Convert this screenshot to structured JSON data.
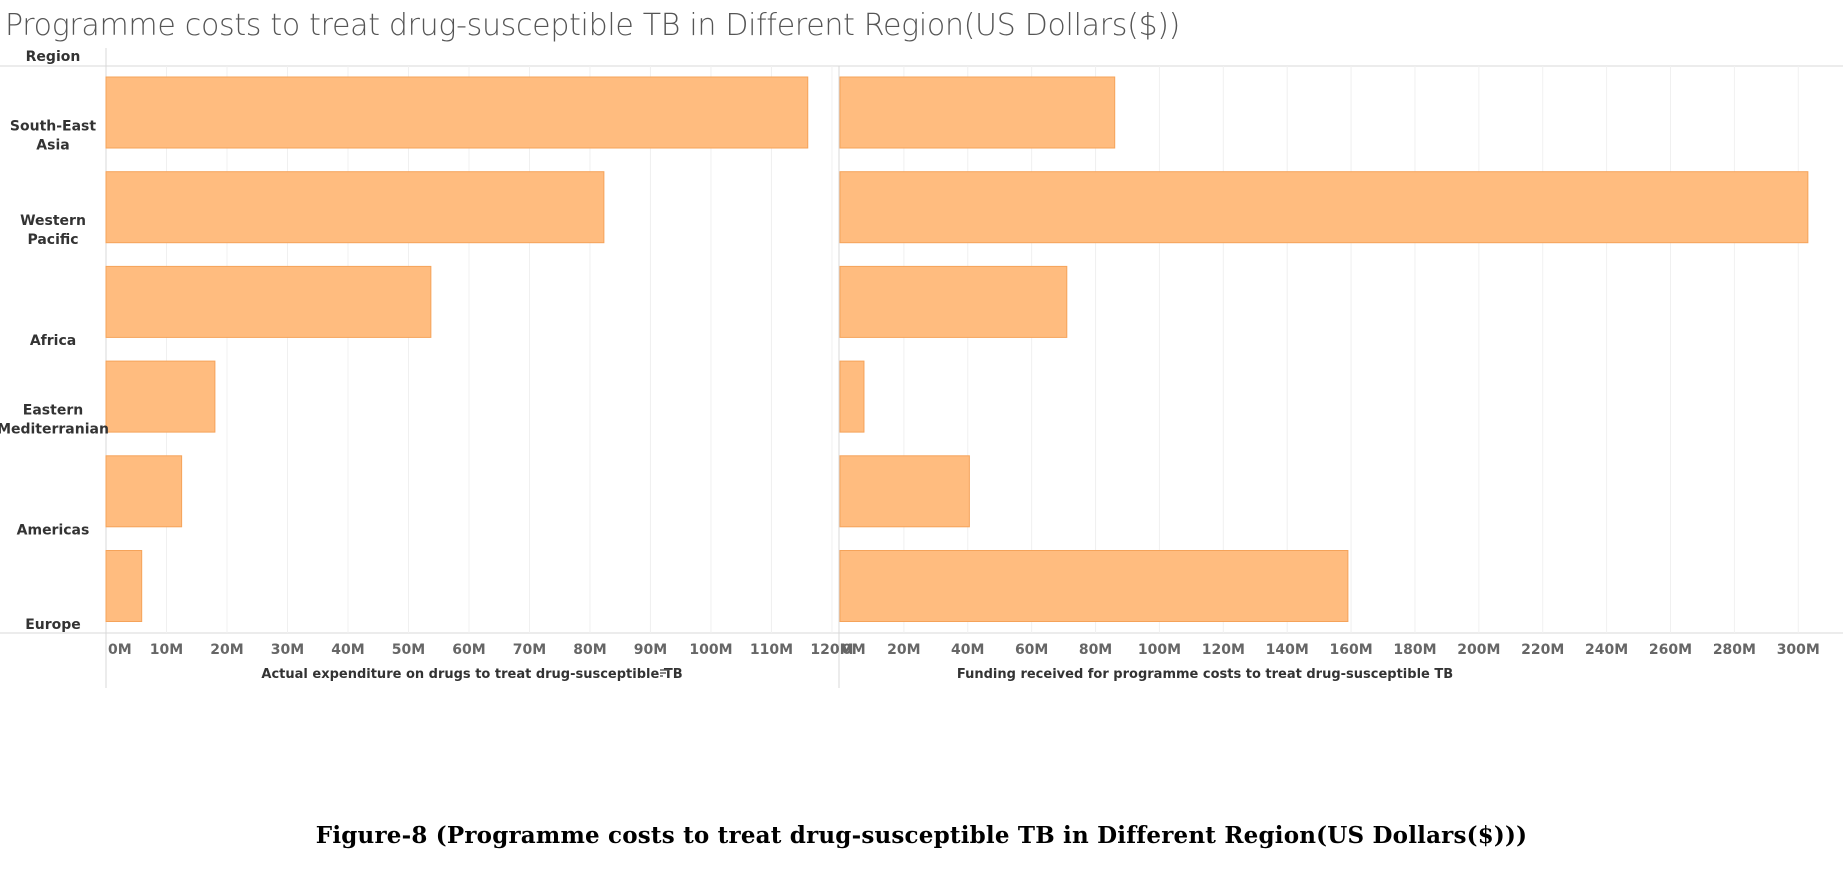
{
  "chart_data": {
    "type": "bar",
    "orientation": "horizontal",
    "title": "Programme costs to treat drug-susceptible TB in Different Region(US Dollars($))",
    "row_header": "Region",
    "categories": [
      "South-East Asia",
      "Western Pacific",
      "Africa",
      "Eastern Mediterranian",
      "Americas",
      "Europe"
    ],
    "category_lines": [
      [
        "South-East",
        "Asia"
      ],
      [
        "Western",
        "Pacific"
      ],
      [
        "Africa"
      ],
      [
        "Eastern",
        "Mediterranian"
      ],
      [
        "Americas"
      ],
      [
        "Europe"
      ]
    ],
    "panels": [
      {
        "xlabel": "Actual expenditure on drugs to treat drug-susceptible TB",
        "sort_icon": "sort-descending-icon",
        "units": "US Dollars",
        "values": [
          116000000,
          82300000,
          53700000,
          18000000,
          12500000,
          5900000
        ],
        "xlim": [
          0,
          121000000
        ],
        "ticks": [
          0,
          10000000,
          20000000,
          30000000,
          40000000,
          50000000,
          60000000,
          70000000,
          80000000,
          90000000,
          100000000,
          110000000,
          120000000
        ],
        "tick_labels": [
          "0M",
          "10M",
          "20M",
          "30M",
          "40M",
          "50M",
          "60M",
          "70M",
          "80M",
          "90M",
          "100M",
          "110M",
          "120M"
        ]
      },
      {
        "xlabel": "Funding received for programme costs to treat drug-susceptible TB",
        "units": "US Dollars",
        "values": [
          86000000,
          303000000,
          71000000,
          7500000,
          40500000,
          159000000
        ],
        "xlim": [
          0,
          314000000
        ],
        "ticks": [
          0,
          20000000,
          40000000,
          60000000,
          80000000,
          100000000,
          120000000,
          140000000,
          160000000,
          180000000,
          200000000,
          220000000,
          240000000,
          260000000,
          280000000,
          300000000
        ],
        "tick_labels": [
          "0M",
          "20M",
          "40M",
          "60M",
          "80M",
          "100M",
          "120M",
          "140M",
          "160M",
          "180M",
          "200M",
          "220M",
          "240M",
          "260M",
          "280M",
          "300M"
        ]
      }
    ],
    "grid": true,
    "legend": "none",
    "bar_color": "#FFBC7F",
    "bar_edge_color": "#F5A35A"
  },
  "caption": "Figure-8 (Programme costs to treat drug-susceptible TB in Different Region(US Dollars($)))"
}
